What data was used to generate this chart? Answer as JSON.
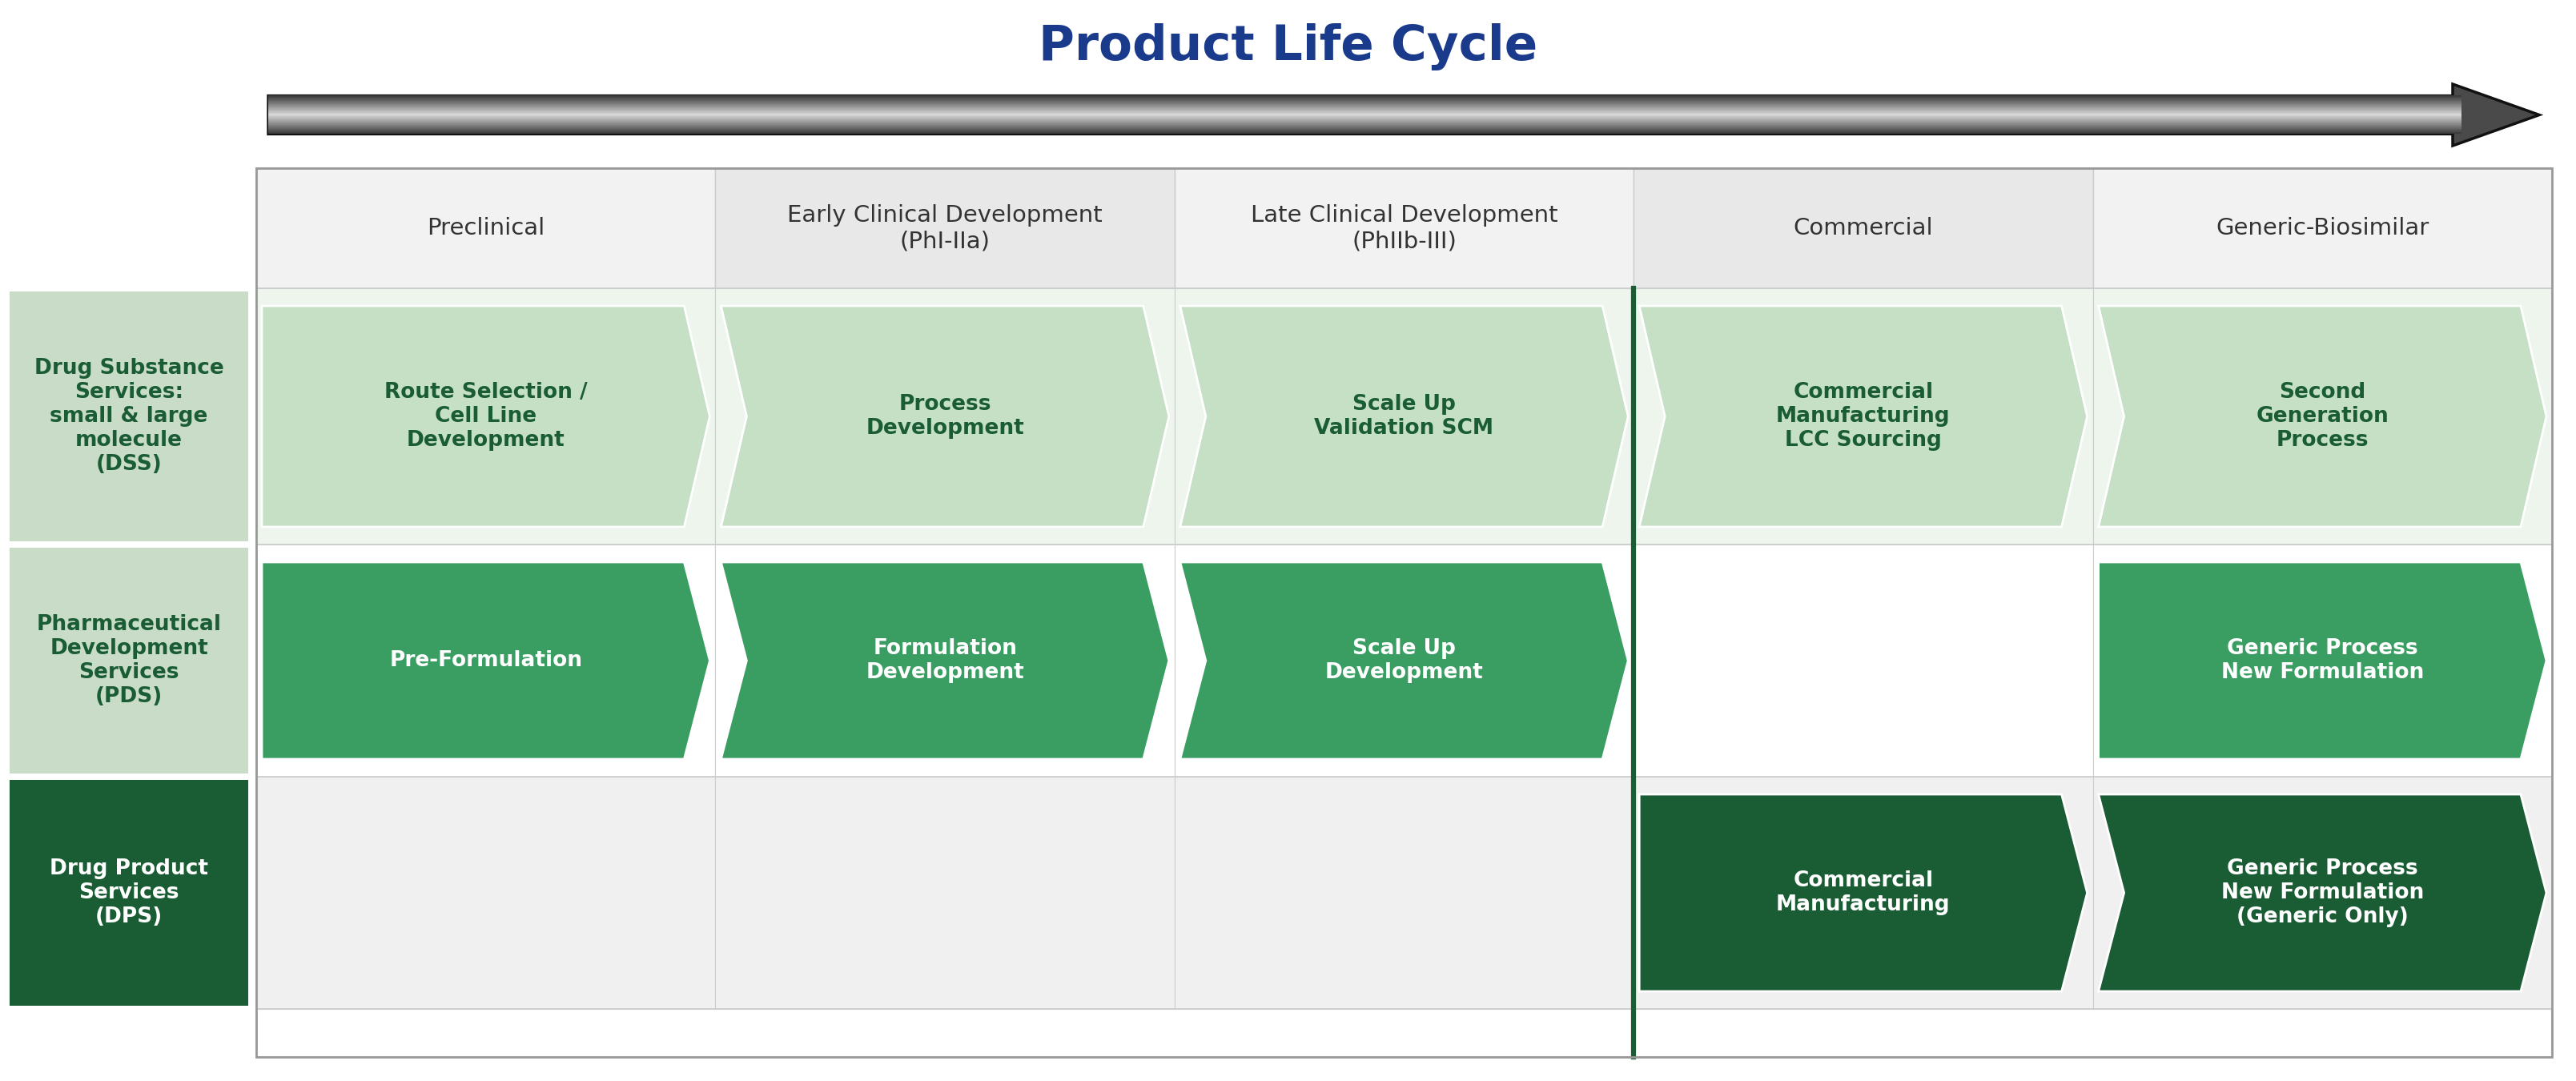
{
  "title": "Product Life Cycle",
  "title_color": "#1a3a8c",
  "bg_color": "#ffffff",
  "col_headers": [
    "Preclinical",
    "Early Clinical Development\n(PhI-IIa)",
    "Late Clinical Development\n(PhIIb-III)",
    "Commercial",
    "Generic-Biosimilar"
  ],
  "row_labels": [
    "Drug Substance\nServices:\nsmall & large\nmolecule\n(DSS)",
    "Pharmaceutical\nDevelopment\nServices\n(PDS)",
    "Drug Product\nServices\n(DPS)"
  ],
  "row_label_bg": [
    "#c8dcc8",
    "#c8dcc8",
    "#1a5c34"
  ],
  "row_label_text_color": [
    "#1a5c34",
    "#1a5c34",
    "#ffffff"
  ],
  "dss_chevrons": [
    "Route Selection /\nCell Line\nDevelopment",
    "Process\nDevelopment",
    "Scale Up\nValidation SCM",
    "Commercial\nManufacturing\nLCC Sourcing",
    "Second\nGeneration\nProcess"
  ],
  "dss_color": "#c5e0c5",
  "dss_text_color": "#1a5c34",
  "pds_chevrons_cols": [
    0,
    1,
    2,
    4
  ],
  "pds_chevrons": [
    "Pre-Formulation",
    "Formulation\nDevelopment",
    "Scale Up\nDevelopment",
    "Generic Process\nNew Formulation"
  ],
  "pds_color": "#3a9e63",
  "pds_text_color": "#ffffff",
  "dps_chevrons_cols": [
    3,
    4
  ],
  "dps_chevrons": [
    "Commercial\nManufacturing",
    "Generic Process\nNew Formulation\n(Generic Only)"
  ],
  "dps_color": "#1a5c34",
  "dps_text_color": "#ffffff",
  "divider_color": "#1a5c34",
  "grid_line_color": "#cccccc",
  "header_bg_even": "#f2f2f2",
  "header_bg_odd": "#e8e8e8",
  "row_bg": [
    "#edf5ed",
    "#ffffff",
    "#f0f0f0"
  ]
}
